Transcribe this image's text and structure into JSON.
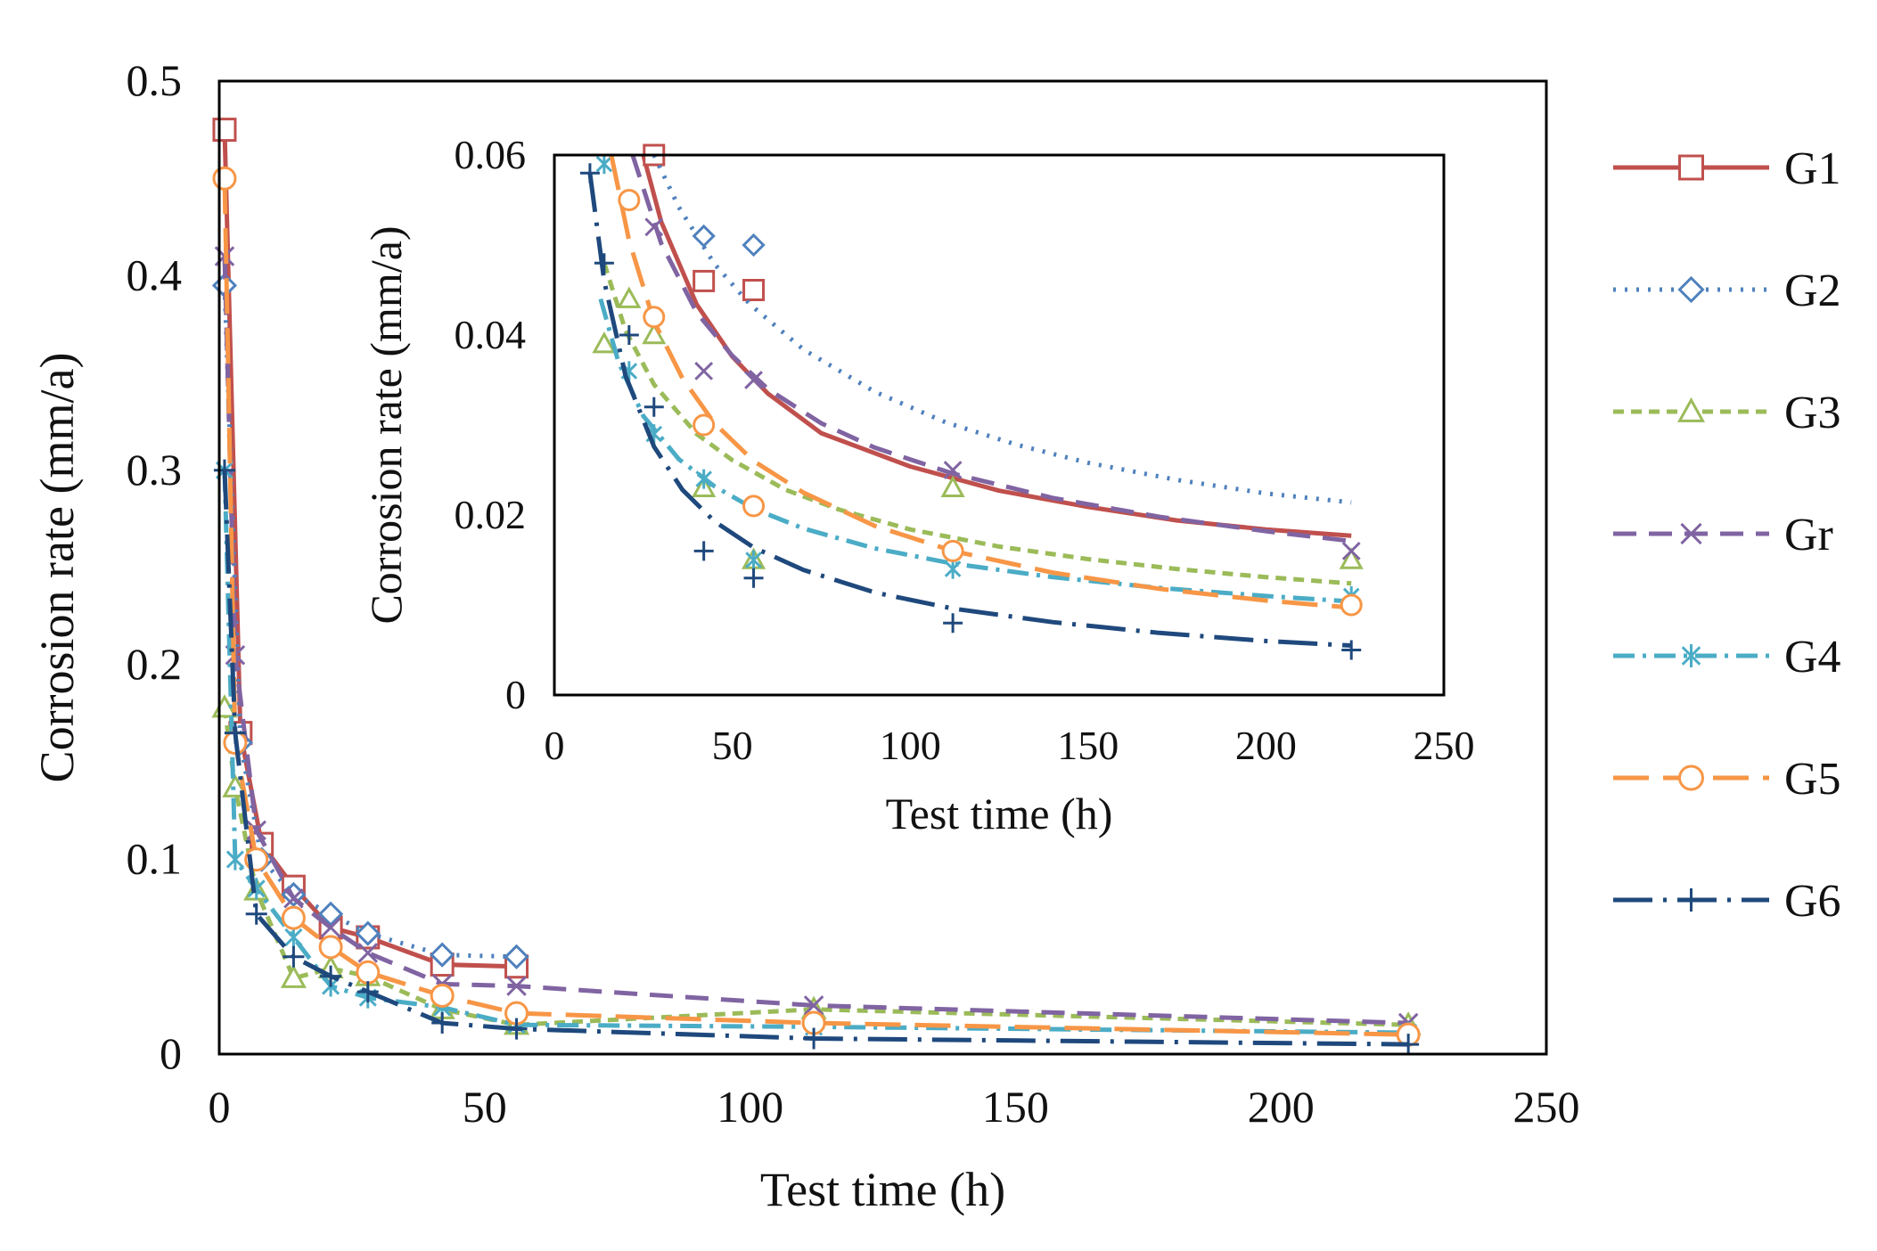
{
  "chart_data": [
    {
      "type": "line",
      "panel": "main",
      "xlabel": "Test time (h)",
      "ylabel": "Corrosion rate  (mm/a)",
      "xlim": [
        0,
        250
      ],
      "ylim": [
        0,
        0.5
      ],
      "xticks": [
        0,
        50,
        100,
        150,
        200,
        250
      ],
      "yticks": [
        0,
        0.1,
        0.2,
        0.3,
        0.4,
        0.5
      ],
      "xtick_labels": [
        "0",
        "50",
        "100",
        "150",
        "200",
        "250"
      ],
      "ytick_labels": [
        "0",
        "0.1",
        "0.2",
        "0.3",
        "0.4",
        "0.5"
      ],
      "series": [
        {
          "name": "G1",
          "color": "#C0504D",
          "marker": "square",
          "dash": "solid",
          "points": [
            [
              1,
              0.475
            ],
            [
              4,
              0.165
            ],
            [
              8,
              0.108
            ],
            [
              14,
              0.086
            ],
            [
              21,
              0.065
            ],
            [
              28,
              0.06
            ],
            [
              42,
              0.046
            ],
            [
              56,
              0.045
            ]
          ]
        },
        {
          "name": "G2",
          "color": "#4F81BD",
          "marker": "diamond",
          "dash": "dot",
          "points": [
            [
              1,
              0.395
            ],
            [
              4,
              0.16
            ],
            [
              8,
              0.1
            ],
            [
              14,
              0.082
            ],
            [
              21,
              0.072
            ],
            [
              28,
              0.062
            ],
            [
              42,
              0.051
            ],
            [
              56,
              0.05
            ]
          ]
        },
        {
          "name": "G3",
          "color": "#9BBB59",
          "marker": "triangle",
          "dash": "short-dash",
          "points": [
            [
              1,
              0.178
            ],
            [
              3,
              0.137
            ],
            [
              7,
              0.084
            ],
            [
              14,
              0.039
            ],
            [
              21,
              0.044
            ],
            [
              28,
              0.04
            ],
            [
              42,
              0.023
            ],
            [
              56,
              0.015
            ],
            [
              112,
              0.023
            ],
            [
              224,
              0.015
            ]
          ]
        },
        {
          "name": "Gr",
          "color": "#8064A2",
          "marker": "x",
          "dash": "dash",
          "points": [
            [
              1,
              0.41
            ],
            [
              3,
              0.205
            ],
            [
              7,
              0.115
            ],
            [
              14,
              0.08
            ],
            [
              21,
              0.065
            ],
            [
              28,
              0.052
            ],
            [
              42,
              0.036
            ],
            [
              56,
              0.035
            ],
            [
              112,
              0.025
            ],
            [
              224,
              0.016
            ]
          ]
        },
        {
          "name": "G4",
          "color": "#4BACC6",
          "marker": "asterisk",
          "dash": "dash-dot",
          "points": [
            [
              1,
              0.3
            ],
            [
              3,
              0.1
            ],
            [
              7,
              0.085
            ],
            [
              14,
              0.06
            ],
            [
              21,
              0.035
            ],
            [
              28,
              0.029
            ],
            [
              42,
              0.024
            ],
            [
              56,
              0.015
            ],
            [
              112,
              0.014
            ],
            [
              224,
              0.011
            ]
          ]
        },
        {
          "name": "G5",
          "color": "#F79646",
          "marker": "circle",
          "dash": "long-dash",
          "points": [
            [
              1,
              0.45
            ],
            [
              3,
              0.16
            ],
            [
              7,
              0.1
            ],
            [
              14,
              0.07
            ],
            [
              21,
              0.055
            ],
            [
              28,
              0.042
            ],
            [
              42,
              0.03
            ],
            [
              56,
              0.021
            ],
            [
              112,
              0.016
            ],
            [
              224,
              0.01
            ]
          ]
        },
        {
          "name": "G6",
          "color": "#1F497D",
          "marker": "plus",
          "dash": "long-dash-dot",
          "points": [
            [
              1,
              0.3
            ],
            [
              3,
              0.165
            ],
            [
              7,
              0.072
            ],
            [
              14,
              0.05
            ],
            [
              21,
              0.04
            ],
            [
              28,
              0.032
            ],
            [
              42,
              0.016
            ],
            [
              56,
              0.013
            ],
            [
              112,
              0.008
            ],
            [
              224,
              0.005
            ]
          ]
        }
      ]
    },
    {
      "type": "line",
      "panel": "inset",
      "xlabel": "Test time (h)",
      "ylabel": "Corrosion rate  (mm/a)",
      "xlim": [
        0,
        250
      ],
      "ylim": [
        0,
        0.06
      ],
      "xticks": [
        0,
        50,
        100,
        150,
        200,
        250
      ],
      "yticks": [
        0,
        0.02,
        0.04,
        0.06
      ],
      "xtick_labels": [
        "0",
        "50",
        "100",
        "150",
        "200",
        "250"
      ],
      "ytick_labels": [
        "0",
        "0.02",
        "0.04",
        "0.06"
      ],
      "series": [
        {
          "name": "G1",
          "points": [
            [
              28,
              0.06
            ],
            [
              42,
              0.046
            ],
            [
              56,
              0.045
            ]
          ],
          "fit": [
            [
              25,
              0.06
            ],
            [
              30,
              0.0526
            ],
            [
              40,
              0.0434
            ],
            [
              50,
              0.0376
            ],
            [
              60,
              0.0335
            ],
            [
              75,
              0.0291
            ],
            [
              100,
              0.0254
            ],
            [
              125,
              0.0227
            ],
            [
              150,
              0.0209
            ],
            [
              175,
              0.0194
            ],
            [
              200,
              0.0184
            ],
            [
              224,
              0.0177
            ]
          ]
        },
        {
          "name": "G2",
          "points": [
            [
              42,
              0.051
            ],
            [
              56,
              0.05
            ]
          ],
          "fit": [
            [
              28,
              0.06
            ],
            [
              35,
              0.0542
            ],
            [
              45,
              0.0479
            ],
            [
              55,
              0.0434
            ],
            [
              70,
              0.0384
            ],
            [
              90,
              0.0337
            ],
            [
              110,
              0.0303
            ],
            [
              130,
              0.0278
            ],
            [
              150,
              0.0258
            ],
            [
              175,
              0.0239
            ],
            [
              200,
              0.0224
            ],
            [
              224,
              0.0214
            ]
          ]
        },
        {
          "name": "G3",
          "points": [
            [
              14,
              0.039
            ],
            [
              21,
              0.044
            ],
            [
              28,
              0.04
            ],
            [
              42,
              0.023
            ],
            [
              56,
              0.015
            ],
            [
              112,
              0.023
            ],
            [
              224,
              0.015
            ]
          ],
          "fit": [
            [
              14,
              0.048
            ],
            [
              20,
              0.0405
            ],
            [
              28,
              0.0345
            ],
            [
              40,
              0.029
            ],
            [
              50,
              0.0261
            ],
            [
              65,
              0.0228
            ],
            [
              80,
              0.0206
            ],
            [
              100,
              0.0184
            ],
            [
              125,
              0.0165
            ],
            [
              150,
              0.0151
            ],
            [
              175,
              0.014
            ],
            [
              200,
              0.0131
            ],
            [
              224,
              0.0124
            ]
          ]
        },
        {
          "name": "Gr",
          "points": [
            [
              28,
              0.052
            ],
            [
              42,
              0.036
            ],
            [
              56,
              0.035
            ],
            [
              112,
              0.025
            ],
            [
              224,
              0.016
            ]
          ],
          "fit": [
            [
              22,
              0.06
            ],
            [
              30,
              0.0502
            ],
            [
              40,
              0.0425
            ],
            [
              50,
              0.0377
            ],
            [
              60,
              0.034
            ],
            [
              75,
              0.0302
            ],
            [
              90,
              0.0275
            ],
            [
              112,
              0.0246
            ],
            [
              140,
              0.0219
            ],
            [
              170,
              0.0198
            ],
            [
              200,
              0.0182
            ],
            [
              224,
              0.0171
            ]
          ]
        },
        {
          "name": "G4",
          "points": [
            [
              14,
              0.059
            ],
            [
              21,
              0.036
            ],
            [
              28,
              0.029
            ],
            [
              42,
              0.024
            ],
            [
              56,
              0.015
            ],
            [
              112,
              0.014
            ],
            [
              224,
              0.011
            ]
          ],
          "fit": [
            [
              13,
              0.044
            ],
            [
              18,
              0.037
            ],
            [
              25,
              0.031
            ],
            [
              35,
              0.0262
            ],
            [
              45,
              0.0232
            ],
            [
              56,
              0.0207
            ],
            [
              70,
              0.0185
            ],
            [
              90,
              0.0163
            ],
            [
              112,
              0.0146
            ],
            [
              140,
              0.0131
            ],
            [
              170,
              0.0119
            ],
            [
              200,
              0.011
            ],
            [
              224,
              0.0104
            ]
          ]
        },
        {
          "name": "G5",
          "points": [
            [
              21,
              0.055
            ],
            [
              28,
              0.042
            ],
            [
              42,
              0.03
            ],
            [
              56,
              0.021
            ],
            [
              112,
              0.016
            ],
            [
              224,
              0.01
            ]
          ],
          "fit": [
            [
              16,
              0.06
            ],
            [
              21,
              0.0505
            ],
            [
              28,
              0.0415
            ],
            [
              36,
              0.0352
            ],
            [
              45,
              0.0302
            ],
            [
              56,
              0.026
            ],
            [
              70,
              0.0225
            ],
            [
              90,
              0.0188
            ],
            [
              112,
              0.016
            ],
            [
              140,
              0.0136
            ],
            [
              170,
              0.0118
            ],
            [
              200,
              0.0105
            ],
            [
              224,
              0.0097
            ]
          ]
        },
        {
          "name": "G6",
          "points": [
            [
              10,
              0.058
            ],
            [
              14,
              0.048
            ],
            [
              21,
              0.04
            ],
            [
              28,
              0.032
            ],
            [
              42,
              0.016
            ],
            [
              56,
              0.013
            ],
            [
              112,
              0.008
            ],
            [
              224,
              0.005
            ]
          ],
          "fit": [
            [
              10,
              0.058
            ],
            [
              14,
              0.046
            ],
            [
              20,
              0.0355
            ],
            [
              28,
              0.0276
            ],
            [
              36,
              0.0228
            ],
            [
              45,
              0.0193
            ],
            [
              56,
              0.0164
            ],
            [
              70,
              0.0139
            ],
            [
              90,
              0.0114
            ],
            [
              112,
              0.0096
            ],
            [
              140,
              0.0081
            ],
            [
              170,
              0.0069
            ],
            [
              200,
              0.006
            ],
            [
              224,
              0.0055
            ]
          ]
        }
      ]
    }
  ]
}
